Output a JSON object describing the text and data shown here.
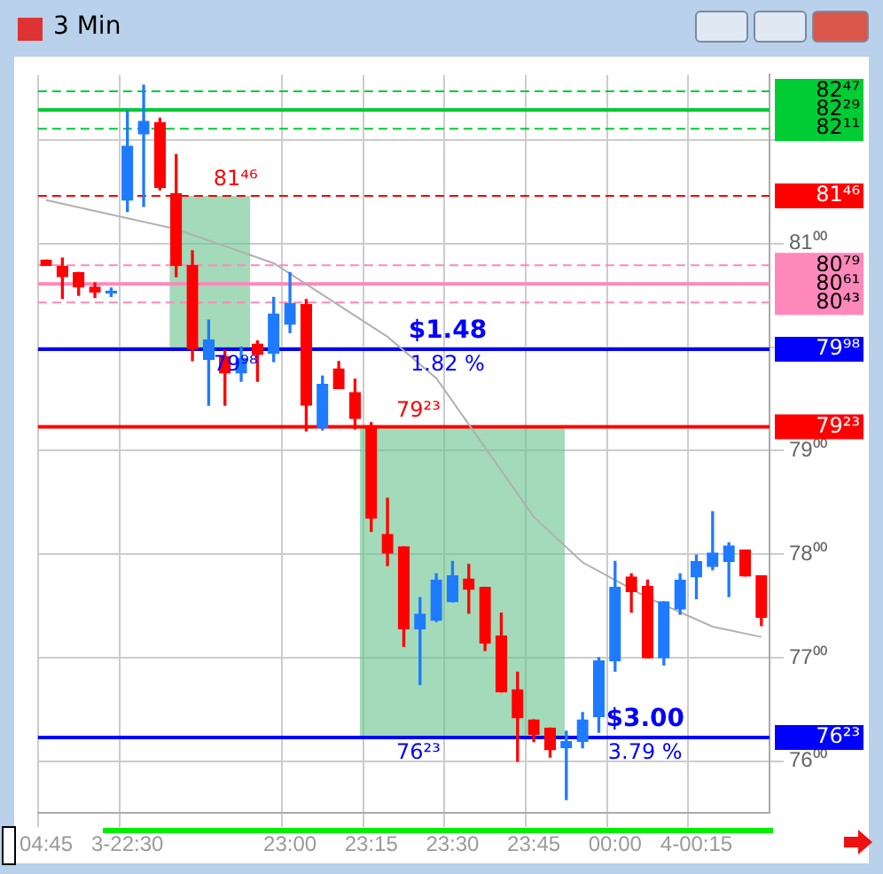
{
  "chart_data": {
    "type": "candlestick",
    "title": "3 Min",
    "categories": [
      "04:45",
      null,
      null,
      null,
      null,
      "3-22:30",
      null,
      null,
      null,
      null,
      null,
      null,
      null,
      null,
      null,
      "23:00",
      null,
      null,
      null,
      null,
      "23:15",
      null,
      null,
      null,
      null,
      "23:30",
      null,
      null,
      null,
      null,
      "23:45",
      null,
      null,
      null,
      null,
      "00:00",
      null,
      null,
      null,
      null,
      "4-00:15",
      null,
      null,
      null,
      null
    ],
    "ohlc": [
      [
        80.84,
        80.84,
        80.79,
        80.79
      ],
      [
        80.78,
        80.86,
        80.47,
        80.68
      ],
      [
        80.72,
        80.72,
        80.5,
        80.58
      ],
      [
        80.58,
        80.62,
        80.48,
        80.53
      ],
      [
        80.52,
        80.57,
        80.49,
        80.54
      ],
      [
        81.42,
        82.28,
        81.31,
        81.94
      ],
      [
        82.06,
        82.53,
        81.36,
        82.18
      ],
      [
        82.17,
        82.21,
        81.52,
        81.54
      ],
      [
        81.48,
        81.86,
        80.68,
        80.79
      ],
      [
        80.79,
        80.93,
        79.87,
        79.98
      ],
      [
        79.88,
        80.26,
        79.44,
        80.07
      ],
      [
        79.91,
        79.97,
        79.44,
        79.75
      ],
      [
        79.75,
        80.0,
        79.67,
        79.89
      ],
      [
        80.03,
        80.06,
        79.67,
        79.93
      ],
      [
        79.94,
        80.48,
        79.86,
        80.32
      ],
      [
        80.22,
        80.72,
        80.14,
        80.42
      ],
      [
        80.41,
        80.46,
        79.19,
        79.44
      ],
      [
        79.22,
        79.72,
        79.2,
        79.64
      ],
      [
        79.79,
        79.86,
        79.6,
        79.6
      ],
      [
        79.56,
        79.69,
        79.21,
        79.31
      ],
      [
        79.23,
        79.27,
        78.22,
        78.35
      ],
      [
        78.19,
        78.54,
        77.89,
        78.01
      ],
      [
        78.07,
        78.07,
        77.11,
        77.28
      ],
      [
        77.28,
        77.58,
        76.74,
        77.42
      ],
      [
        77.36,
        77.81,
        77.35,
        77.75
      ],
      [
        77.54,
        77.93,
        77.54,
        77.79
      ],
      [
        77.76,
        77.9,
        77.43,
        77.66
      ],
      [
        77.68,
        77.68,
        77.07,
        77.14
      ],
      [
        77.21,
        77.43,
        76.67,
        76.67
      ],
      [
        76.69,
        76.86,
        76.0,
        76.42
      ],
      [
        76.4,
        76.4,
        76.19,
        76.26
      ],
      [
        76.32,
        76.32,
        76.04,
        76.11
      ],
      [
        76.13,
        76.29,
        75.63,
        76.19
      ],
      [
        76.19,
        76.47,
        76.13,
        76.4
      ],
      [
        76.43,
        77.0,
        76.28,
        76.97
      ],
      [
        76.97,
        77.93,
        76.87,
        77.68
      ],
      [
        77.78,
        77.81,
        77.44,
        77.64
      ],
      [
        77.69,
        77.75,
        77.0,
        77.0
      ],
      [
        77.0,
        77.54,
        76.93,
        77.54
      ],
      [
        77.47,
        77.81,
        77.42,
        77.75
      ],
      [
        77.78,
        77.99,
        77.57,
        77.93
      ],
      [
        77.88,
        78.41,
        77.85,
        78.01
      ],
      [
        77.93,
        78.11,
        77.59,
        78.08
      ],
      [
        78.04,
        78.04,
        77.79,
        77.79
      ],
      [
        77.79,
        77.79,
        77.31,
        77.39
      ]
    ],
    "colors": [
      "#ff0000",
      "#ff0000",
      "#ff0000",
      "#ff0000",
      "#1e7bff",
      "#1e7bff",
      "#1e7bff",
      "#ff0000",
      "#ff0000",
      "#ff0000",
      "#1e7bff",
      "#ff0000",
      "#1e7bff",
      "#ff0000",
      "#1e7bff",
      "#1e7bff",
      "#ff0000",
      "#1e7bff",
      "#ff0000",
      "#ff0000",
      "#ff0000",
      "#ff0000",
      "#ff0000",
      "#1e7bff",
      "#1e7bff",
      "#1e7bff",
      "#ff0000",
      "#ff0000",
      "#ff0000",
      "#ff0000",
      "#ff0000",
      "#ff0000",
      "#1e7bff",
      "#1e7bff",
      "#1e7bff",
      "#1e7bff",
      "#ff0000",
      "#ff0000",
      "#1e7bff",
      "#1e7bff",
      "#1e7bff",
      "#1e7bff",
      "#1e7bff",
      "#ff0000",
      "#ff0000"
    ],
    "series": [
      {
        "type": "line",
        "color": "#b0b0b0",
        "values": [
          81.42,
          null,
          null,
          null,
          null,
          null,
          null,
          null,
          81.14,
          null,
          null,
          null,
          null,
          null,
          80.81,
          null,
          null,
          null,
          null,
          null,
          null,
          80.1,
          null,
          null,
          79.7,
          null,
          null,
          79.03,
          null,
          null,
          78.36,
          null,
          null,
          77.92,
          null,
          null,
          null,
          77.58,
          null,
          null,
          null,
          77.3,
          null,
          null,
          77.2
        ]
      }
    ],
    "ylim": [
      75.5,
      82.63
    ],
    "yticks": [
      {
        "value": 76,
        "label": "76⁰⁰"
      },
      {
        "value": 77,
        "label": "77⁰⁰"
      },
      {
        "value": 78,
        "label": "78⁰⁰"
      },
      {
        "value": 79,
        "label": "79⁰⁰"
      },
      {
        "value": 80,
        "label": null
      },
      {
        "value": 81,
        "label": "81⁰⁰"
      },
      {
        "value": 82,
        "label": null
      }
    ],
    "grid": true,
    "legend": false,
    "ref_lines": [
      {
        "axis": "y",
        "value": 82.47,
        "label": "82⁴⁷",
        "color": "#00cc33",
        "line_style": "dashed"
      },
      {
        "axis": "y",
        "value": 82.29,
        "label": "82²⁹",
        "color": "#00cc33",
        "line_style": "solid"
      },
      {
        "axis": "y",
        "value": 82.11,
        "label": "82¹¹",
        "color": "#00cc33",
        "line_style": "dashed"
      },
      {
        "axis": "y",
        "value": 81.46,
        "label": "81⁴⁶",
        "color": "#ff0000",
        "line_style": "dashed"
      },
      {
        "axis": "y",
        "value": 80.79,
        "label": "80⁷⁹",
        "color": "#ff88bb",
        "line_style": "dashed"
      },
      {
        "axis": "y",
        "value": 80.61,
        "label": "80⁶¹",
        "color": "#ff88bb",
        "line_style": "solid"
      },
      {
        "axis": "y",
        "value": 80.43,
        "label": "80⁴³",
        "color": "#ff88bb",
        "line_style": "dashed"
      },
      {
        "axis": "y",
        "value": 79.98,
        "label": "79⁹⁸",
        "color": "#0000ff",
        "line_style": "solid"
      },
      {
        "axis": "y",
        "value": 79.23,
        "label": "79²³",
        "color": "#ff0000",
        "line_style": "solid"
      },
      {
        "axis": "y",
        "value": 76.23,
        "label": "76²³",
        "color": "#0000ff",
        "line_style": "solid"
      }
    ],
    "bands": [
      {
        "axis": "y",
        "from": 79.98,
        "to": 81.46,
        "color": "#66c28a"
      },
      {
        "axis": "y",
        "from": 76.23,
        "to": 79.23,
        "color": "#66c28a"
      }
    ],
    "annotations": [
      {
        "text": "81⁴⁶",
        "y": 81.46
      },
      {
        "text": "79⁹⁸",
        "y": 79.98
      },
      {
        "text": "79²³",
        "y": 79.23
      },
      {
        "text": "76²³",
        "y": 76.23
      },
      {
        "text": "$1.48",
        "y": 79.98
      },
      {
        "text": "1.82 %",
        "y": 79.98
      },
      {
        "text": "$3.00",
        "y": 76.23
      },
      {
        "text": "3.79 %",
        "y": 76.23
      }
    ]
  }
}
